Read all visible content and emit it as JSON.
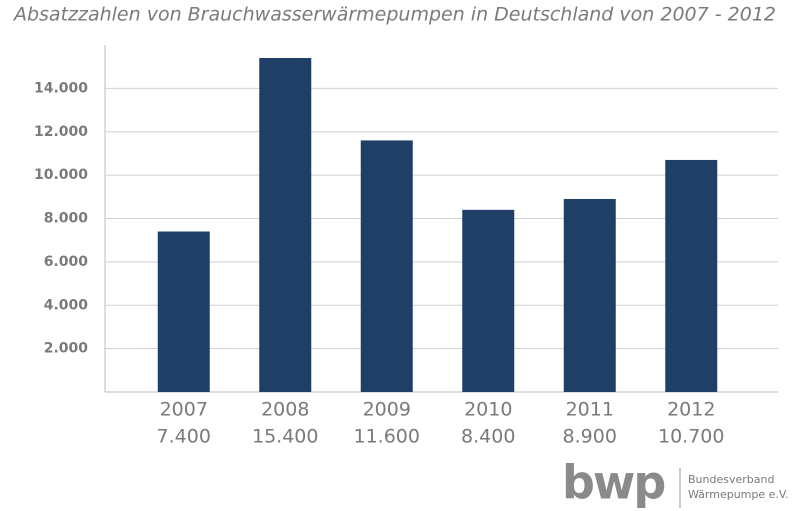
{
  "chart_data": {
    "type": "bar",
    "title": "Absatzzahlen von Brauchwasserwärmepumpen in Deutschland von 2007 - 2012",
    "categories": [
      "2007",
      "2008",
      "2009",
      "2010",
      "2011",
      "2012"
    ],
    "values": [
      7400,
      15400,
      11600,
      8400,
      8900,
      10700
    ],
    "value_labels": [
      "7.400",
      "15.400",
      "11.600",
      "8.400",
      "8.900",
      "10.700"
    ],
    "color": "#1f3f66",
    "ylim": [
      0,
      16000
    ],
    "yticks": [
      {
        "value": 2000,
        "label": "2.000"
      },
      {
        "value": 4000,
        "label": "4.000"
      },
      {
        "value": 6000,
        "label": "6.000"
      },
      {
        "value": 8000,
        "label": "8.000"
      },
      {
        "value": 10000,
        "label": "10.000"
      },
      {
        "value": 12000,
        "label": "12.000"
      },
      {
        "value": 14000,
        "label": "14.000"
      }
    ],
    "grid": true
  },
  "logo": {
    "mark": "bwp",
    "line1": "Bundesverband",
    "line2": "Wärmepumpe e.V."
  }
}
